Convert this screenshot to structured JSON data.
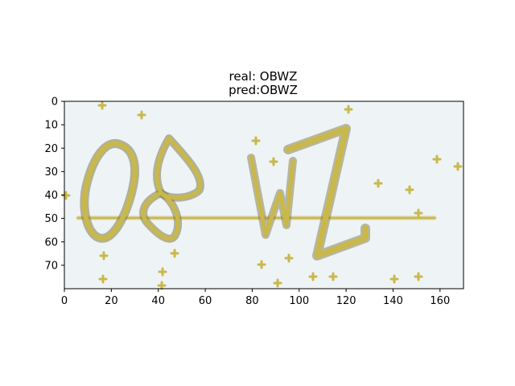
{
  "chart_data": {
    "type": "image",
    "title_lines": [
      "real: OBWZ",
      "pred:OBWZ"
    ],
    "xlim": [
      0,
      170
    ],
    "ylim": [
      80,
      0
    ],
    "xticks": [
      0,
      20,
      40,
      60,
      80,
      100,
      120,
      140,
      160
    ],
    "yticks": [
      0,
      10,
      20,
      30,
      40,
      50,
      60,
      70
    ],
    "image_content": {
      "captcha_text": "OBWZ",
      "background_color": "#eef3f6",
      "stroke_color": "#c9b84a",
      "stroke_shadow_color": "#7d7a4c"
    }
  }
}
